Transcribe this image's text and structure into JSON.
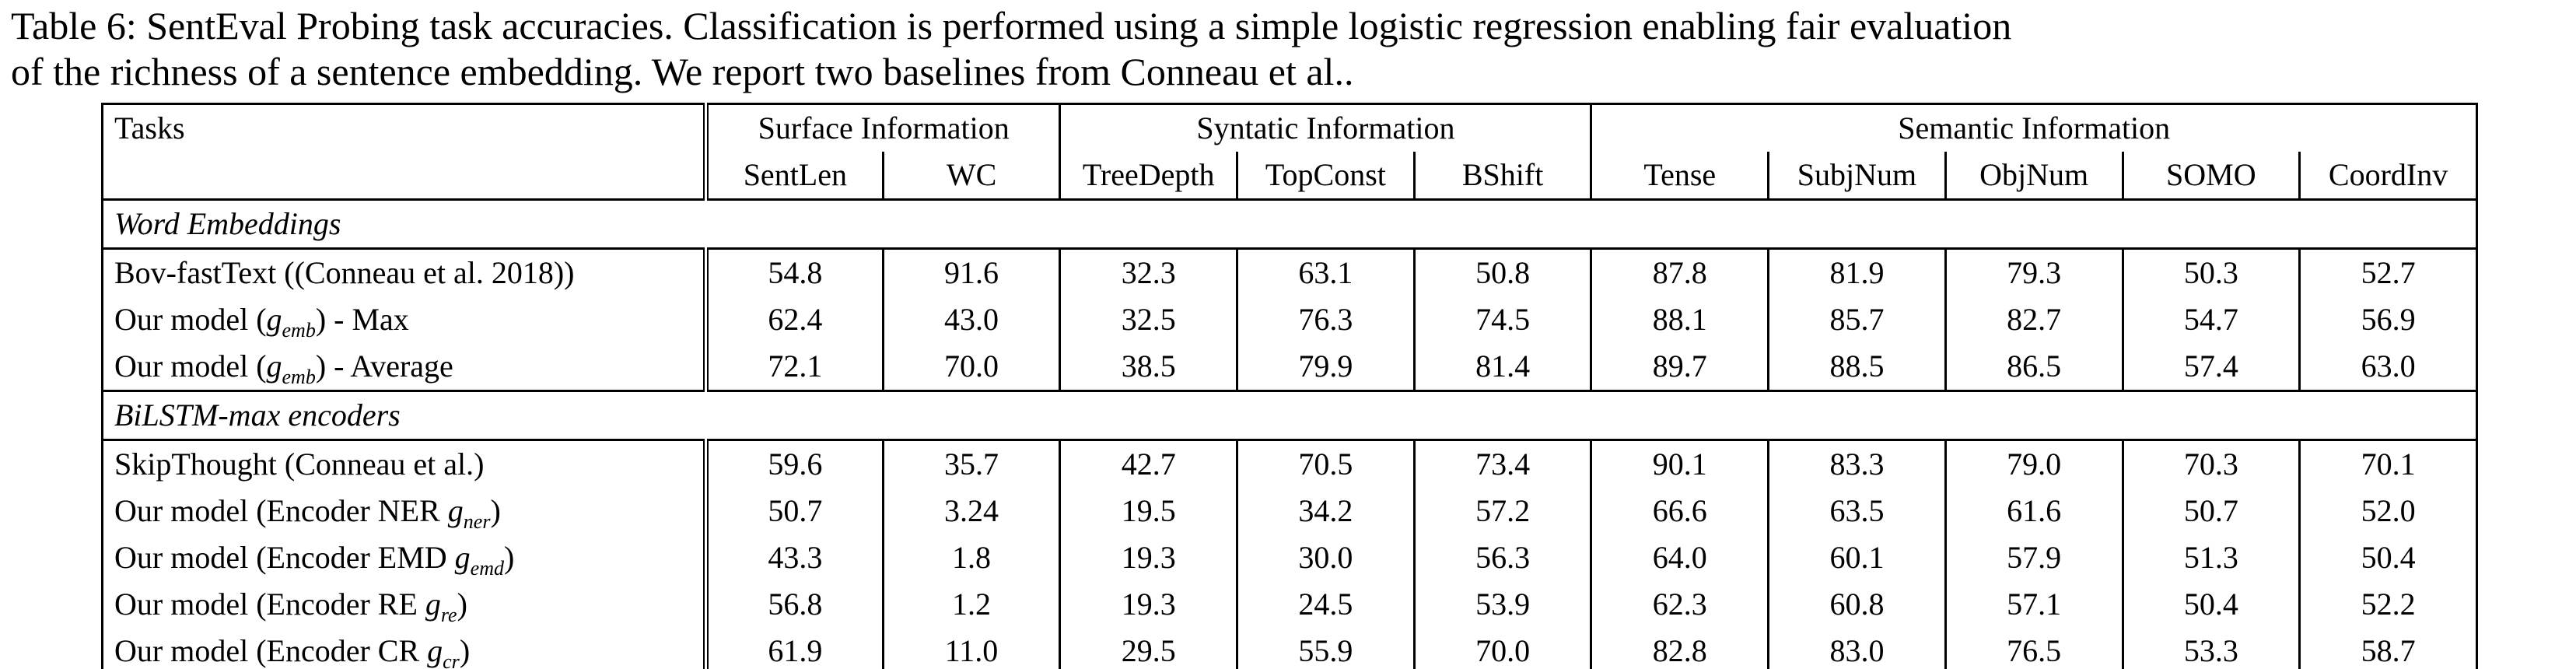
{
  "caption": {
    "line1": "Table 6: SentEval Probing task accuracies. Classification is performed using a simple logistic regression enabling fair evaluation",
    "line2": "of the richness of a sentence embedding. We report two baselines from Conneau et al.."
  },
  "table": {
    "tasks_header": "Tasks",
    "groups": [
      {
        "label": "Surface Information",
        "span": 2
      },
      {
        "label": "Syntatic Information",
        "span": 3
      },
      {
        "label": "Semantic Information",
        "span": 5
      }
    ],
    "columns": [
      "SentLen",
      "WC",
      "TreeDepth",
      "TopConst",
      "BShift",
      "Tense",
      "SubjNum",
      "ObjNum",
      "SOMO",
      "CoordInv"
    ],
    "sections": [
      {
        "title": "Word Embeddings",
        "rows": [
          {
            "label": [
              {
                "t": "Bov-fastText ((Conneau et al. 2018))"
              }
            ],
            "values": [
              "54.8",
              "91.6",
              "32.3",
              "63.1",
              "50.8",
              "87.8",
              "81.9",
              "79.3",
              "50.3",
              "52.7"
            ]
          },
          {
            "label": [
              {
                "t": "Our model ("
              },
              {
                "t": "g",
                "k": "var"
              },
              {
                "t": "emb",
                "k": "sub"
              },
              {
                "t": ") - Max"
              }
            ],
            "values": [
              "62.4",
              "43.0",
              "32.5",
              "76.3",
              "74.5",
              "88.1",
              "85.7",
              "82.7",
              "54.7",
              "56.9"
            ]
          },
          {
            "label": [
              {
                "t": "Our model ("
              },
              {
                "t": "g",
                "k": "var"
              },
              {
                "t": "emb",
                "k": "sub"
              },
              {
                "t": ") - Average"
              }
            ],
            "values": [
              "72.1",
              "70.0",
              "38.5",
              "79.9",
              "81.4",
              "89.7",
              "88.5",
              "86.5",
              "57.4",
              "63.0"
            ]
          }
        ]
      },
      {
        "title": "BiLSTM-max encoders",
        "rows": [
          {
            "label": [
              {
                "t": "SkipThought (Conneau et al.)"
              }
            ],
            "values": [
              "59.6",
              "35.7",
              "42.7",
              "70.5",
              "73.4",
              "90.1",
              "83.3",
              "79.0",
              "70.3",
              "70.1"
            ]
          },
          {
            "label": [
              {
                "t": "Our model (Encoder NER "
              },
              {
                "t": "g",
                "k": "var"
              },
              {
                "t": "ner",
                "k": "sub"
              },
              {
                "t": ")"
              }
            ],
            "values": [
              "50.7",
              "3.24",
              "19.5",
              "34.2",
              "57.2",
              "66.6",
              "63.5",
              "61.6",
              "50.7",
              "52.0"
            ]
          },
          {
            "label": [
              {
                "t": "Our model (Encoder EMD "
              },
              {
                "t": "g",
                "k": "var"
              },
              {
                "t": "emd",
                "k": "sub"
              },
              {
                "t": ")"
              }
            ],
            "values": [
              "43.3",
              "1.8",
              "19.3",
              "30.0",
              "56.3",
              "64.0",
              "60.1",
              "57.9",
              "51.3",
              "50.4"
            ]
          },
          {
            "label": [
              {
                "t": "Our model (Encoder RE "
              },
              {
                "t": "g",
                "k": "var"
              },
              {
                "t": "re",
                "k": "sub"
              },
              {
                "t": ")"
              }
            ],
            "values": [
              "56.8",
              "1.2",
              "19.3",
              "24.5",
              "53.9",
              "62.3",
              "60.8",
              "57.1",
              "50.4",
              "52.2"
            ]
          },
          {
            "label": [
              {
                "t": "Our model (Encoder CR "
              },
              {
                "t": "g",
                "k": "var"
              },
              {
                "t": "cr",
                "k": "sub"
              },
              {
                "t": ")"
              }
            ],
            "values": [
              "61.9",
              "11.0",
              "29.5",
              "55.9",
              "70.0",
              "82.8",
              "83.0",
              "76.5",
              "53.3",
              "58.7"
            ]
          }
        ]
      }
    ]
  }
}
